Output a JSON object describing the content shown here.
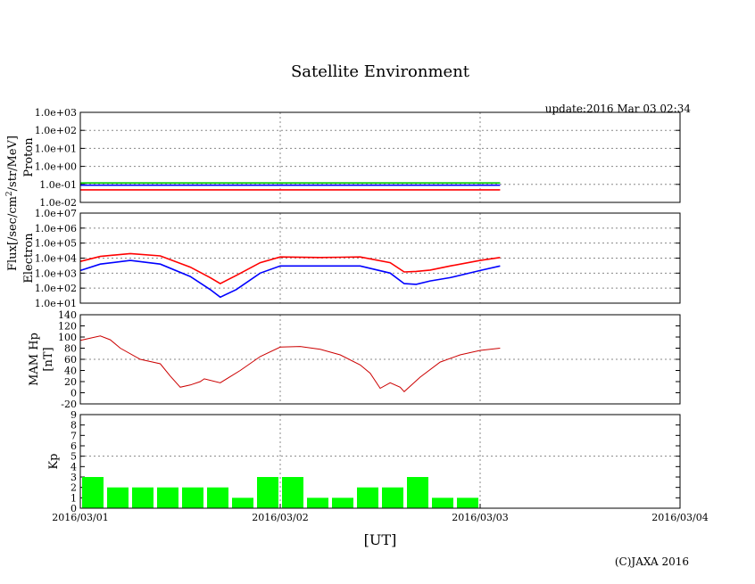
{
  "chart_data": {
    "type": "multi-panel",
    "title": "Satellite Environment",
    "update": "update:2016 Mar 03 02:34",
    "copyright": "(C)JAXA 2016",
    "xlabel": "[UT]",
    "shared_ylabel": "Flux[/sec/cm²/str/MeV]",
    "x_ticks": [
      "2016/03/01",
      "2016/03/02",
      "2016/03/03",
      "2016/03/04"
    ],
    "x_range_days": [
      0,
      3
    ],
    "data_end_day": 2.1,
    "grid": true,
    "panels": [
      {
        "id": "proton",
        "ylabel": "Proton",
        "scale": "log",
        "ylim": [
          0.01,
          1000
        ],
        "yticks": [
          "1.0e-02",
          "1.0e-01",
          "1.0e+00",
          "1.0e+01",
          "1.0e+02",
          "1.0e+03"
        ],
        "series": [
          {
            "color": "#ff0000",
            "x": [
              0,
              0.25,
              0.5,
              0.75,
              1.0,
              1.25,
              1.5,
              1.75,
              2.0,
              2.1
            ],
            "y": [
              0.05,
              0.05,
              0.05,
              0.05,
              0.05,
              0.05,
              0.05,
              0.05,
              0.05,
              0.05
            ]
          },
          {
            "color": "#00cc00",
            "x": [
              0,
              0.25,
              0.5,
              0.75,
              1.0,
              1.25,
              1.5,
              1.75,
              2.0,
              2.1
            ],
            "y": [
              0.12,
              0.12,
              0.12,
              0.12,
              0.12,
              0.12,
              0.12,
              0.12,
              0.12,
              0.12
            ]
          },
          {
            "color": "#0000ff",
            "x": [
              0,
              0.25,
              0.5,
              0.75,
              1.0,
              1.25,
              1.5,
              1.75,
              2.0,
              2.1
            ],
            "y": [
              0.09,
              0.09,
              0.09,
              0.09,
              0.09,
              0.09,
              0.09,
              0.09,
              0.09,
              0.09
            ]
          }
        ]
      },
      {
        "id": "electron",
        "ylabel": "Electron",
        "scale": "log",
        "ylim": [
          10,
          10000000
        ],
        "yticks": [
          "1.0e+01",
          "1.0e+02",
          "1.0e+03",
          "1.0e+04",
          "1.0e+05",
          "1.0e+06",
          "1.0e+07"
        ],
        "series": [
          {
            "color": "#ff0000",
            "x": [
              0,
              0.1,
              0.25,
              0.4,
              0.55,
              0.65,
              0.7,
              0.78,
              0.9,
              1.0,
              1.2,
              1.4,
              1.55,
              1.62,
              1.68,
              1.75,
              1.85,
              2.0,
              2.1
            ],
            "y": [
              6000,
              13000,
              20000,
              14000,
              2500,
              500,
              200,
              700,
              5000,
              12000,
              11000,
              12000,
              5000,
              1200,
              1300,
              1600,
              3000,
              7000,
              11000
            ]
          },
          {
            "color": "#0000ff",
            "x": [
              0,
              0.1,
              0.25,
              0.4,
              0.55,
              0.65,
              0.7,
              0.78,
              0.9,
              1.0,
              1.2,
              1.4,
              1.55,
              1.62,
              1.68,
              1.75,
              1.85,
              2.0,
              2.1
            ],
            "y": [
              1500,
              4000,
              7000,
              4000,
              600,
              80,
              25,
              80,
              1000,
              3000,
              3000,
              3000,
              1000,
              200,
              180,
              300,
              500,
              1500,
              3000
            ]
          }
        ]
      },
      {
        "id": "mam",
        "ylabel": "MAM Hp",
        "ylabel2": "[nT]",
        "scale": "linear",
        "ylim": [
          -20,
          140
        ],
        "yticks": [
          "-20",
          "0",
          "20",
          "40",
          "60",
          "80",
          "100",
          "120",
          "140"
        ],
        "series": [
          {
            "color": "#cc0000",
            "x": [
              0,
              0.05,
              0.1,
              0.15,
              0.2,
              0.3,
              0.4,
              0.45,
              0.5,
              0.55,
              0.6,
              0.62,
              0.7,
              0.8,
              0.9,
              1.0,
              1.1,
              1.2,
              1.3,
              1.4,
              1.45,
              1.5,
              1.55,
              1.6,
              1.62,
              1.7,
              1.8,
              1.9,
              2.0,
              2.1
            ],
            "y": [
              94,
              98,
              102,
              95,
              80,
              60,
              52,
              30,
              10,
              14,
              20,
              25,
              18,
              40,
              65,
              82,
              83,
              78,
              68,
              50,
              35,
              8,
              18,
              10,
              2,
              28,
              55,
              68,
              76,
              80
            ]
          }
        ]
      },
      {
        "id": "kp",
        "ylabel": "Kp",
        "scale": "linear",
        "ylim": [
          0,
          9
        ],
        "yticks": [
          "0",
          "1",
          "2",
          "3",
          "4",
          "5",
          "6",
          "7",
          "8",
          "9"
        ],
        "bar_color": "#00ff00",
        "bar_width_days": 0.125,
        "values": [
          3,
          2,
          2,
          2,
          2,
          2,
          1,
          3,
          3,
          1,
          1,
          2,
          2,
          3,
          1,
          1
        ]
      }
    ]
  }
}
